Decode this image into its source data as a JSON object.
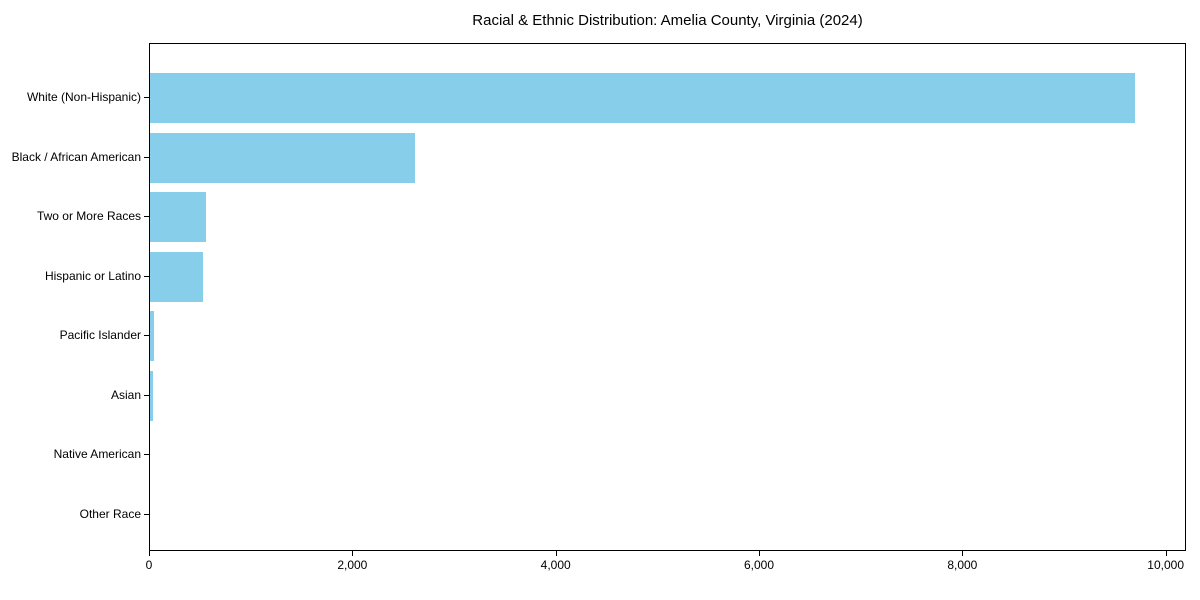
{
  "title": "Racial & Ethnic Distribution: Amelia County, Virginia (2024)",
  "chart_data": {
    "type": "bar",
    "orientation": "horizontal",
    "title": "Racial & Ethnic Distribution: Amelia County, Virginia (2024)",
    "categories": [
      "White (Non-Hispanic)",
      "Black / African American",
      "Two or More Races",
      "Hispanic or Latino",
      "Pacific Islander",
      "Asian",
      "Native American",
      "Other Race"
    ],
    "values": [
      9710,
      2615,
      555,
      520,
      35,
      30,
      0,
      0
    ],
    "xlabel": "",
    "ylabel": "",
    "xlim": [
      0,
      10200
    ],
    "x_ticks": [
      0,
      2000,
      4000,
      6000,
      8000,
      10000
    ],
    "x_tick_labels": [
      "0",
      "2,000",
      "4,000",
      "6,000",
      "8,000",
      "10,000"
    ],
    "bar_color": "#87CEEB",
    "axis_color": "#000000",
    "background_color": "#ffffff",
    "grid": false,
    "legend": null
  }
}
